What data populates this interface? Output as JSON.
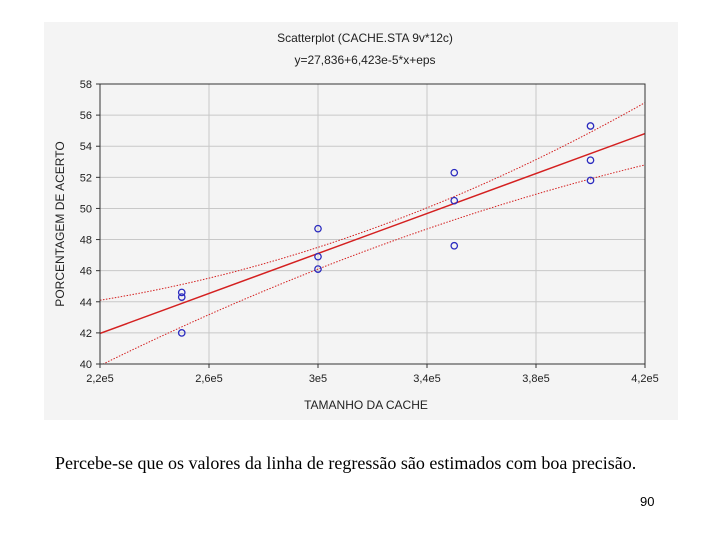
{
  "chart_data": {
    "type": "scatter",
    "title": "Scatterplot (CACHE.STA 9v*12c)",
    "subtitle": "y=27,836+6,423e-5*x+eps",
    "xlabel": "TAMANHO DA CACHE",
    "ylabel": "PORCENTAGEM DE ACERTO",
    "xlim": [
      220000,
      420000
    ],
    "ylim": [
      40,
      58
    ],
    "x_ticks": [
      220000,
      260000,
      300000,
      340000,
      380000,
      420000
    ],
    "x_tick_labels": [
      "2,2e5",
      "2,6e5",
      "3e5",
      "3,4e5",
      "3,8e5",
      "4,2e5"
    ],
    "y_ticks": [
      40,
      42,
      44,
      46,
      48,
      50,
      52,
      54,
      56,
      58
    ],
    "y_tick_labels": [
      "40",
      "42",
      "44",
      "46",
      "48",
      "50",
      "52",
      "54",
      "56",
      "58"
    ],
    "grid": true,
    "points": [
      {
        "x": 250000,
        "y": 44.6
      },
      {
        "x": 250000,
        "y": 44.3
      },
      {
        "x": 250000,
        "y": 42.0
      },
      {
        "x": 300000,
        "y": 48.7
      },
      {
        "x": 300000,
        "y": 46.9
      },
      {
        "x": 300000,
        "y": 46.1
      },
      {
        "x": 350000,
        "y": 52.3
      },
      {
        "x": 350000,
        "y": 50.5
      },
      {
        "x": 350000,
        "y": 47.6
      },
      {
        "x": 400000,
        "y": 55.3
      },
      {
        "x": 400000,
        "y": 53.1
      },
      {
        "x": 400000,
        "y": 51.8
      }
    ],
    "regression": {
      "intercept": 27.836,
      "slope": 6.423e-05
    },
    "confidence_band": {
      "upper": [
        [
          220000,
          44.1
        ],
        [
          300000,
          47.5
        ],
        [
          420000,
          56.8
        ]
      ],
      "lower": [
        [
          220000,
          39.9
        ],
        [
          300000,
          46.1
        ],
        [
          420000,
          52.8
        ]
      ]
    },
    "colors": {
      "points": "#2b2bbf",
      "regression": "#d42020",
      "grid": "#c8c8c8"
    }
  },
  "caption": "Percebe-se que os valores da linha de regressão são estimados com boa precisão.",
  "page_number": "90"
}
